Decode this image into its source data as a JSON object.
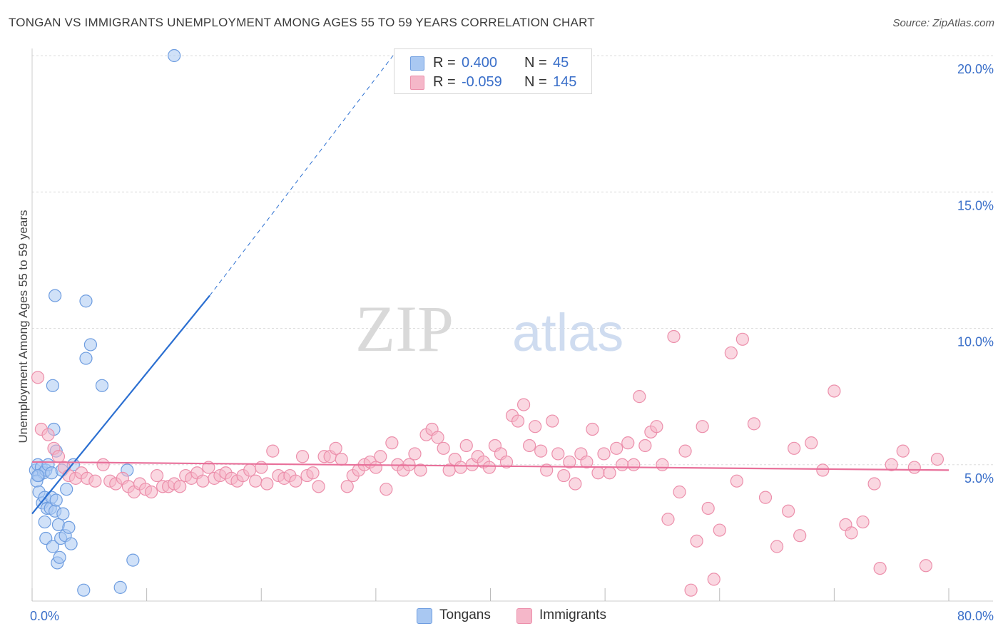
{
  "title": "TONGAN VS IMMIGRANTS UNEMPLOYMENT AMONG AGES 55 TO 59 YEARS CORRELATION CHART",
  "source": "Source: ZipAtlas.com",
  "watermark": {
    "zip": "ZIP",
    "atlas": "atlas"
  },
  "colors": {
    "blue_fill": "#a9c8f2",
    "blue_stroke": "#6e9de0",
    "blue_line": "#2b6fd1",
    "pink_fill": "#f5b7c9",
    "pink_stroke": "#ec8fab",
    "pink_line": "#e8709a",
    "axis_label": "#3a6fc9",
    "grid": "#dddddd"
  },
  "legend": {
    "rows": [
      {
        "r_label": "R =",
        "r_value": "0.400",
        "n_label": "N =",
        "n_value": "45"
      },
      {
        "r_label": "R =",
        "r_value": "-0.059",
        "n_label": "N =",
        "n_value": "145"
      }
    ]
  },
  "bottom_legend": [
    "Tongans",
    "Immigrants"
  ],
  "chart_data": {
    "type": "scatter",
    "title": "TONGAN VS IMMIGRANTS UNEMPLOYMENT AMONG AGES 55 TO 59 YEARS CORRELATION CHART",
    "xlabel": "",
    "ylabel": "Unemployment Among Ages 55 to 59 years",
    "xlim": [
      0,
      80
    ],
    "ylim": [
      0,
      20
    ],
    "x_tick_labels": [
      "0.0%",
      "80.0%"
    ],
    "y_ticks": [
      5,
      10,
      15,
      20
    ],
    "y_tick_labels": [
      "5.0%",
      "10.0%",
      "15.0%",
      "20.0%"
    ],
    "grid": true,
    "series": [
      {
        "name": "Tongans",
        "points": [
          [
            0.3,
            4.8
          ],
          [
            0.5,
            5.0
          ],
          [
            0.6,
            4.6
          ],
          [
            0.8,
            4.9
          ],
          [
            1.0,
            4.7
          ],
          [
            1.2,
            4.8
          ],
          [
            1.4,
            5.0
          ],
          [
            0.4,
            4.4
          ],
          [
            0.6,
            4.0
          ],
          [
            0.9,
            3.6
          ],
          [
            1.1,
            3.8
          ],
          [
            1.3,
            3.4
          ],
          [
            1.1,
            2.9
          ],
          [
            1.2,
            2.3
          ],
          [
            1.8,
            2.0
          ],
          [
            2.2,
            1.4
          ],
          [
            2.4,
            1.6
          ],
          [
            1.6,
            3.4
          ],
          [
            1.7,
            3.8
          ],
          [
            2.0,
            3.3
          ],
          [
            2.3,
            2.8
          ],
          [
            2.1,
            3.7
          ],
          [
            2.7,
            3.2
          ],
          [
            2.5,
            2.3
          ],
          [
            2.9,
            2.4
          ],
          [
            3.2,
            2.7
          ],
          [
            3.4,
            2.1
          ],
          [
            1.7,
            4.7
          ],
          [
            1.9,
            6.3
          ],
          [
            2.1,
            5.5
          ],
          [
            2.6,
            4.8
          ],
          [
            3.0,
            4.1
          ],
          [
            3.6,
            5.0
          ],
          [
            1.8,
            7.9
          ],
          [
            2.0,
            11.2
          ],
          [
            4.7,
            11.0
          ],
          [
            4.7,
            8.9
          ],
          [
            5.1,
            9.4
          ],
          [
            6.1,
            7.9
          ],
          [
            8.3,
            4.8
          ],
          [
            8.8,
            1.5
          ],
          [
            7.7,
            0.5
          ],
          [
            4.5,
            0.4
          ],
          [
            12.4,
            20.0
          ],
          [
            0.5,
            4.6
          ]
        ]
      },
      {
        "name": "Immigrants",
        "points": [
          [
            0.5,
            8.2
          ],
          [
            0.8,
            6.3
          ],
          [
            1.4,
            6.1
          ],
          [
            1.9,
            5.6
          ],
          [
            2.3,
            5.3
          ],
          [
            2.8,
            4.9
          ],
          [
            3.2,
            4.6
          ],
          [
            3.8,
            4.5
          ],
          [
            4.3,
            4.7
          ],
          [
            4.8,
            4.5
          ],
          [
            5.5,
            4.4
          ],
          [
            6.2,
            5.0
          ],
          [
            6.8,
            4.4
          ],
          [
            7.3,
            4.3
          ],
          [
            7.9,
            4.5
          ],
          [
            8.4,
            4.2
          ],
          [
            8.9,
            4.0
          ],
          [
            9.4,
            4.3
          ],
          [
            9.9,
            4.1
          ],
          [
            10.4,
            4.0
          ],
          [
            10.9,
            4.6
          ],
          [
            11.4,
            4.2
          ],
          [
            11.9,
            4.2
          ],
          [
            12.4,
            4.3
          ],
          [
            12.9,
            4.2
          ],
          [
            13.4,
            4.6
          ],
          [
            13.9,
            4.5
          ],
          [
            14.4,
            4.7
          ],
          [
            14.9,
            4.4
          ],
          [
            15.4,
            4.9
          ],
          [
            15.9,
            4.5
          ],
          [
            16.4,
            4.6
          ],
          [
            16.9,
            4.7
          ],
          [
            17.4,
            4.5
          ],
          [
            17.9,
            4.4
          ],
          [
            18.4,
            4.6
          ],
          [
            19.0,
            4.8
          ],
          [
            19.5,
            4.4
          ],
          [
            20.0,
            4.9
          ],
          [
            20.5,
            4.3
          ],
          [
            21.0,
            5.5
          ],
          [
            21.5,
            4.6
          ],
          [
            22.0,
            4.5
          ],
          [
            22.5,
            4.6
          ],
          [
            23.0,
            4.4
          ],
          [
            23.6,
            5.3
          ],
          [
            24.0,
            4.6
          ],
          [
            24.5,
            4.7
          ],
          [
            25.0,
            4.2
          ],
          [
            25.5,
            5.3
          ],
          [
            26.0,
            5.3
          ],
          [
            26.5,
            5.6
          ],
          [
            27.0,
            5.2
          ],
          [
            27.5,
            4.2
          ],
          [
            28.0,
            4.6
          ],
          [
            28.5,
            4.8
          ],
          [
            29.0,
            5.0
          ],
          [
            29.5,
            5.1
          ],
          [
            30.0,
            4.9
          ],
          [
            30.4,
            5.3
          ],
          [
            30.9,
            4.1
          ],
          [
            31.4,
            5.8
          ],
          [
            31.9,
            5.0
          ],
          [
            32.4,
            4.8
          ],
          [
            32.9,
            5.0
          ],
          [
            33.4,
            5.4
          ],
          [
            33.9,
            4.8
          ],
          [
            34.4,
            6.1
          ],
          [
            34.9,
            6.3
          ],
          [
            35.4,
            6.0
          ],
          [
            35.9,
            5.6
          ],
          [
            36.4,
            4.8
          ],
          [
            36.9,
            5.2
          ],
          [
            37.4,
            4.9
          ],
          [
            37.9,
            5.7
          ],
          [
            38.4,
            5.0
          ],
          [
            38.9,
            5.3
          ],
          [
            39.4,
            5.1
          ],
          [
            39.9,
            4.9
          ],
          [
            40.4,
            5.7
          ],
          [
            40.9,
            5.4
          ],
          [
            41.4,
            5.1
          ],
          [
            41.9,
            6.8
          ],
          [
            42.4,
            6.6
          ],
          [
            42.9,
            7.2
          ],
          [
            43.4,
            5.7
          ],
          [
            43.9,
            6.4
          ],
          [
            44.4,
            5.5
          ],
          [
            44.9,
            4.8
          ],
          [
            45.4,
            6.6
          ],
          [
            45.9,
            5.4
          ],
          [
            46.4,
            4.6
          ],
          [
            46.9,
            5.1
          ],
          [
            47.4,
            4.3
          ],
          [
            47.9,
            5.4
          ],
          [
            48.4,
            5.1
          ],
          [
            48.9,
            6.3
          ],
          [
            49.4,
            4.7
          ],
          [
            49.9,
            5.4
          ],
          [
            50.4,
            4.7
          ],
          [
            51.0,
            5.6
          ],
          [
            51.5,
            5.0
          ],
          [
            52.0,
            5.8
          ],
          [
            52.5,
            5.0
          ],
          [
            53.0,
            7.5
          ],
          [
            53.5,
            5.7
          ],
          [
            54.0,
            6.2
          ],
          [
            54.5,
            6.4
          ],
          [
            55.0,
            5.0
          ],
          [
            55.5,
            3.0
          ],
          [
            56.0,
            9.7
          ],
          [
            56.5,
            4.0
          ],
          [
            57.0,
            5.5
          ],
          [
            57.5,
            0.4
          ],
          [
            58.0,
            2.2
          ],
          [
            58.5,
            6.4
          ],
          [
            59.0,
            3.4
          ],
          [
            59.5,
            0.8
          ],
          [
            60.0,
            2.6
          ],
          [
            61.0,
            9.1
          ],
          [
            61.5,
            4.4
          ],
          [
            62.0,
            9.6
          ],
          [
            63.0,
            6.5
          ],
          [
            64.0,
            3.8
          ],
          [
            65.0,
            2.0
          ],
          [
            66.0,
            3.3
          ],
          [
            67.0,
            2.4
          ],
          [
            68.0,
            5.8
          ],
          [
            69.0,
            4.8
          ],
          [
            70.0,
            7.7
          ],
          [
            71.0,
            2.8
          ],
          [
            71.5,
            2.5
          ],
          [
            72.5,
            2.9
          ],
          [
            73.5,
            4.3
          ],
          [
            74.0,
            1.2
          ],
          [
            75.0,
            5.0
          ],
          [
            76.0,
            5.5
          ],
          [
            77.0,
            4.9
          ],
          [
            78.0,
            1.3
          ],
          [
            79.0,
            5.2
          ],
          [
            66.5,
            5.6
          ]
        ]
      }
    ],
    "trendlines": [
      {
        "series": "Tongans",
        "x": [
          0,
          15.5
        ],
        "y": [
          3.2,
          11.2
        ],
        "dashed_to": [
          31.5,
          20.0
        ]
      },
      {
        "series": "Immigrants",
        "x": [
          0,
          80
        ],
        "y": [
          5.1,
          4.8
        ]
      }
    ]
  }
}
